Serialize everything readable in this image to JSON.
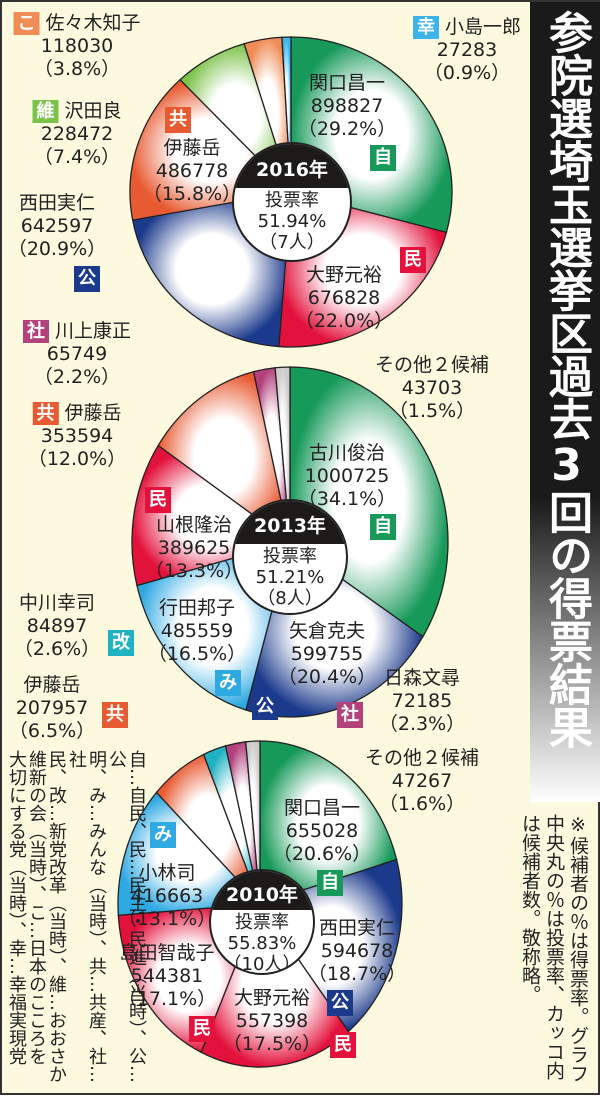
{
  "title": "参院選埼玉選挙区過去3回の得票結果",
  "note": [
    "※候補者の％は得票率。グラフ",
    "中央丸の％は投票率、カッコ内",
    "は候補者数。敬称略。"
  ],
  "legend": [
    "自…自民、民…民主・民進（当時）、公…公",
    "明、み…みんな（当時）、共…共産、社…社",
    "民、改…新党改革（当時）、維…おおさか",
    "維新の会（当時）、こ…日本のこころを",
    "大切にする党（当時）、幸…幸福実現党"
  ],
  "party_colors": {
    "自": "#17995a",
    "民": "#e3123c",
    "公": "#1c3a8c",
    "共": "#e85a32",
    "維": "#7cc24a",
    "こ": "#f08c55",
    "幸": "#3cb4ea",
    "み": "#2fa9e2",
    "社": "#b3417c",
    "改": "#1fb2c2",
    "他": "#cccccc"
  },
  "chart_data": [
    {
      "type": "pie",
      "year": "2016年",
      "turnout_label": "投票率",
      "turnout": "51.94%",
      "candidates": "（7人）",
      "slices": [
        {
          "name": "関口昌一",
          "party": "自",
          "votes": "898827",
          "pct": "（29.2%）",
          "value": 29.2
        },
        {
          "name": "大野元裕",
          "party": "民",
          "votes": "676828",
          "pct": "（22.0%）",
          "value": 22.0
        },
        {
          "name": "西田実仁",
          "party": "公",
          "votes": "642597",
          "pct": "（20.9%）",
          "value": 20.9
        },
        {
          "name": "伊藤岳",
          "party": "共",
          "votes": "486778",
          "pct": "（15.8%）",
          "value": 15.8
        },
        {
          "name": "沢田良",
          "party": "維",
          "votes": "228472",
          "pct": "（7.4%）",
          "value": 7.4
        },
        {
          "name": "佐々木知子",
          "party": "こ",
          "votes": "118030",
          "pct": "（3.8%）",
          "value": 3.8
        },
        {
          "name": "小島一郎",
          "party": "幸",
          "votes": "27283",
          "pct": "（0.9%）",
          "value": 0.9
        }
      ]
    },
    {
      "type": "pie",
      "year": "2013年",
      "turnout_label": "投票率",
      "turnout": "51.21%",
      "candidates": "（8人）",
      "slices": [
        {
          "name": "古川俊治",
          "party": "自",
          "votes": "1000725",
          "pct": "（34.1%）",
          "value": 34.1
        },
        {
          "name": "矢倉克夫",
          "party": "公",
          "votes": "599755",
          "pct": "（20.4%）",
          "value": 20.4
        },
        {
          "name": "行田邦子",
          "party": "み",
          "votes": "485559",
          "pct": "（16.5%）",
          "value": 16.5
        },
        {
          "name": "山根隆治",
          "party": "民",
          "votes": "389625",
          "pct": "（13.3%）",
          "value": 13.3
        },
        {
          "name": "伊藤岳",
          "party": "共",
          "votes": "353594",
          "pct": "（12.0%）",
          "value": 12.0
        },
        {
          "name": "川上康正",
          "party": "社",
          "votes": "65749",
          "pct": "（2.2%）",
          "value": 2.2
        },
        {
          "name": "その他２候補",
          "party": "他",
          "votes": "43703",
          "pct": "（1.5%）",
          "value": 1.5
        }
      ]
    },
    {
      "type": "pie",
      "year": "2010年",
      "turnout_label": "投票率",
      "turnout": "55.83%",
      "candidates": "（10人）",
      "slices": [
        {
          "name": "関口昌一",
          "party": "自",
          "votes": "655028",
          "pct": "（20.6%）",
          "value": 20.6
        },
        {
          "name": "西田実仁",
          "party": "公",
          "votes": "594678",
          "pct": "（18.7%）",
          "value": 18.7
        },
        {
          "name": "大野元裕",
          "party": "民",
          "votes": "557398",
          "pct": "（17.5%）",
          "value": 17.5
        },
        {
          "name": "島田智哉子",
          "party": "民",
          "votes": "544381",
          "pct": "（17.1%）",
          "value": 17.1
        },
        {
          "name": "小林司",
          "party": "み",
          "votes": "416663",
          "pct": "（13.1%）",
          "value": 13.1
        },
        {
          "name": "伊藤岳",
          "party": "共",
          "votes": "207957",
          "pct": "（6.5%）",
          "value": 6.5
        },
        {
          "name": "中川幸司",
          "party": "改",
          "votes": "84897",
          "pct": "（2.6%）",
          "value": 2.6
        },
        {
          "name": "日森文尋",
          "party": "社",
          "votes": "72185",
          "pct": "（2.3%）",
          "value": 2.3
        },
        {
          "name": "その他２候補",
          "party": "他",
          "votes": "47267",
          "pct": "（1.6%）",
          "value": 1.6
        }
      ]
    }
  ]
}
